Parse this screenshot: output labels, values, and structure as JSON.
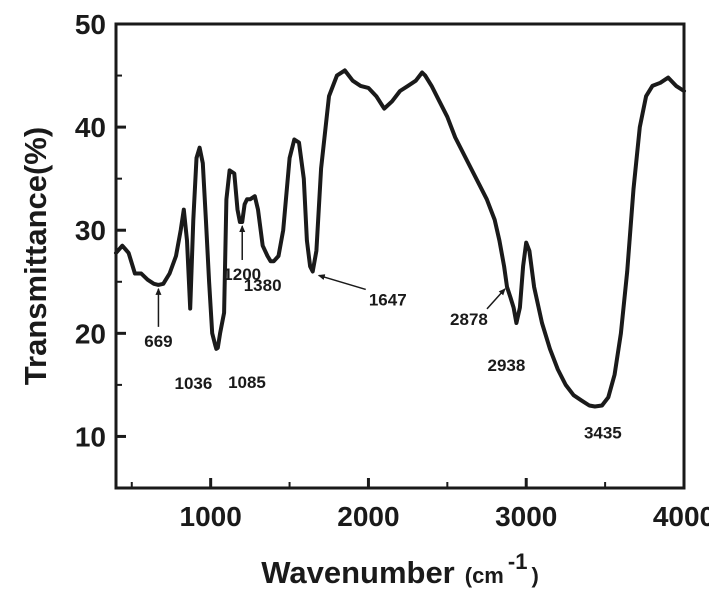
{
  "chart_data": {
    "type": "line",
    "title": "",
    "xlabel_main": "Wavenumber",
    "xlabel_unit_open": "(cm",
    "xlabel_unit_sup": "-1",
    "xlabel_unit_close": ")",
    "ylabel": "Transmittance(%)",
    "xlim": [
      400,
      4000
    ],
    "ylim": [
      5,
      50
    ],
    "xticks": [
      1000,
      2000,
      3000,
      4000
    ],
    "yticks": [
      10,
      20,
      30,
      40,
      50
    ],
    "grid": false,
    "legend": "none",
    "series": [
      {
        "color": "#1a1a1a",
        "x": [
          400,
          440,
          480,
          520,
          560,
          600,
          640,
          669,
          700,
          740,
          780,
          810,
          830,
          850,
          870,
          890,
          910,
          930,
          950,
          970,
          990,
          1010,
          1030,
          1036,
          1045,
          1060,
          1085,
          1100,
          1120,
          1150,
          1170,
          1185,
          1200,
          1215,
          1230,
          1250,
          1280,
          1300,
          1330,
          1360,
          1380,
          1400,
          1430,
          1460,
          1500,
          1530,
          1560,
          1590,
          1610,
          1630,
          1647,
          1670,
          1700,
          1750,
          1800,
          1850,
          1900,
          1950,
          2000,
          2050,
          2100,
          2150,
          2200,
          2250,
          2300,
          2340,
          2360,
          2400,
          2450,
          2500,
          2550,
          2600,
          2650,
          2700,
          2750,
          2800,
          2830,
          2860,
          2878,
          2900,
          2920,
          2938,
          2960,
          2980,
          3000,
          3020,
          3050,
          3100,
          3150,
          3200,
          3250,
          3300,
          3350,
          3400,
          3435,
          3480,
          3520,
          3560,
          3600,
          3640,
          3680,
          3720,
          3760,
          3800,
          3850,
          3900,
          3950,
          4000
        ],
        "y": [
          27.8,
          28.5,
          27.8,
          25.8,
          25.8,
          25.2,
          24.8,
          24.7,
          24.8,
          25.8,
          27.5,
          30.0,
          32.0,
          29.0,
          22.4,
          31.0,
          37.0,
          38.0,
          36.5,
          31.0,
          25.0,
          20.0,
          18.8,
          18.5,
          18.6,
          20.0,
          22.0,
          33.0,
          35.8,
          35.5,
          32.0,
          30.8,
          30.8,
          32.5,
          33.0,
          33.0,
          33.3,
          32.0,
          28.5,
          27.5,
          27.0,
          27.0,
          27.5,
          30.0,
          37.0,
          38.8,
          38.5,
          35.0,
          29.0,
          26.5,
          26.0,
          28.0,
          36.0,
          43.0,
          45.0,
          45.5,
          44.5,
          44.0,
          43.8,
          43.0,
          41.8,
          42.5,
          43.5,
          44.0,
          44.5,
          45.3,
          45.0,
          44.0,
          42.5,
          41.0,
          39.0,
          37.5,
          36.0,
          34.5,
          33.0,
          31.0,
          29.0,
          26.5,
          24.5,
          23.5,
          22.5,
          21.0,
          22.5,
          26.5,
          28.8,
          28.0,
          24.5,
          21.0,
          18.5,
          16.5,
          15.0,
          14.0,
          13.5,
          13.0,
          12.9,
          13.0,
          13.8,
          16.0,
          20.0,
          26.0,
          34.0,
          40.0,
          43.0,
          44.0,
          44.3,
          44.8,
          44.0,
          43.5
        ]
      }
    ],
    "annotations": [
      {
        "label": "669",
        "x": 669,
        "y": 24.7
      },
      {
        "label": "1036",
        "x": 1036,
        "y": 18.5
      },
      {
        "label": "1085",
        "x": 1085,
        "y": 18.6
      },
      {
        "label": "1200",
        "x": 1200,
        "y": 30.8
      },
      {
        "label": "1380",
        "x": 1380,
        "y": 27.0
      },
      {
        "label": "1647",
        "x": 1647,
        "y": 26.0
      },
      {
        "label": "2878",
        "x": 2878,
        "y": 24.5
      },
      {
        "label": "2938",
        "x": 2938,
        "y": 21.0
      },
      {
        "label": "3435",
        "x": 3435,
        "y": 12.9
      }
    ]
  }
}
